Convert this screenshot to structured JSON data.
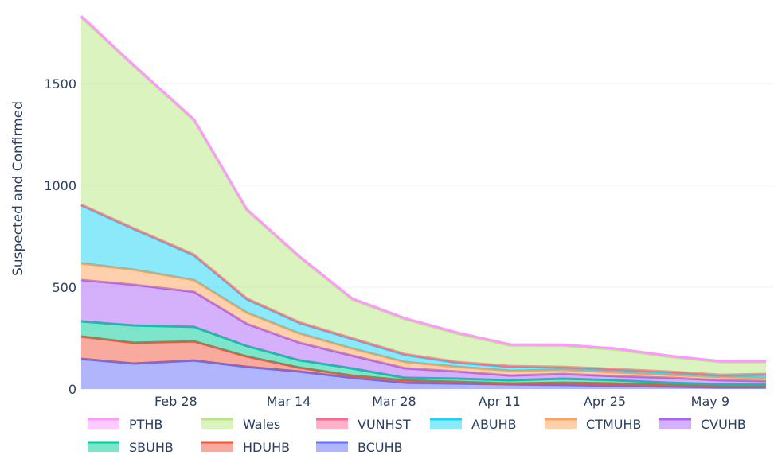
{
  "chart_data": {
    "type": "area",
    "stacked": true,
    "title": "",
    "xlabel": "",
    "ylabel": "Suspected and Confirmed",
    "ylim": [
      0,
      1836
    ],
    "yticks": [
      0,
      500,
      1000,
      1500
    ],
    "xtick_labels": [
      {
        "date": "2020-02-28",
        "label": "Feb 28"
      },
      {
        "date": "2020-03-14",
        "label": "Mar 14"
      },
      {
        "date": "2020-03-28",
        "label": "Mar 28"
      },
      {
        "date": "2020-04-11",
        "label": "Apr 11"
      },
      {
        "date": "2020-04-25",
        "label": "Apr 25"
      },
      {
        "date": "2020-05-09",
        "label": "May 9"
      }
    ],
    "grid": "horizontal",
    "legend_placement": "bottom",
    "x": [
      "2020-02-15",
      "2020-02-22",
      "2020-03-01",
      "2020-03-08",
      "2020-03-15",
      "2020-03-22",
      "2020-03-29",
      "2020-04-05",
      "2020-04-12",
      "2020-04-19",
      "2020-04-26",
      "2020-05-03",
      "2020-05-10",
      "2020-05-16"
    ],
    "series": [
      {
        "name": "BCUHB",
        "color": "#636efa",
        "values": [
          148,
          125,
          140,
          109,
          86,
          55,
          31,
          27,
          23,
          20,
          16,
          12,
          8,
          8
        ]
      },
      {
        "name": "HDUHB",
        "color": "#ef553b",
        "values": [
          110,
          102,
          94,
          51,
          19,
          11,
          12,
          8,
          4,
          11,
          11,
          8,
          8,
          8
        ]
      },
      {
        "name": "SBUHB",
        "color": "#00cc96",
        "values": [
          74,
          85,
          71,
          51,
          36,
          35,
          12,
          16,
          16,
          20,
          16,
          11,
          7,
          7
        ]
      },
      {
        "name": "CVUHB",
        "color": "#ab63fa",
        "values": [
          203,
          200,
          172,
          109,
          86,
          63,
          47,
          35,
          23,
          23,
          20,
          24,
          20,
          16
        ]
      },
      {
        "name": "CTMUHB",
        "color": "#ffa15a",
        "values": [
          82,
          74,
          58,
          55,
          46,
          35,
          31,
          23,
          24,
          20,
          19,
          15,
          16,
          16
        ]
      },
      {
        "name": "ABUHB",
        "color": "#19d3f3",
        "values": [
          285,
          199,
          121,
          66,
          51,
          47,
          35,
          20,
          19,
          11,
          12,
          12,
          7,
          15
        ]
      },
      {
        "name": "VUNHST",
        "color": "#ff6692",
        "values": [
          4,
          4,
          4,
          4,
          4,
          4,
          4,
          4,
          4,
          4,
          4,
          4,
          4,
          4
        ]
      },
      {
        "name": "Wales",
        "color": "#b6e880",
        "values": [
          920,
          796,
          659,
          433,
          319,
          190,
          171,
          139,
          101,
          104,
          96,
          73,
          62,
          58
        ]
      },
      {
        "name": "PTHB",
        "color": "#ff97ff",
        "values": [
          5,
          5,
          5,
          5,
          5,
          5,
          5,
          5,
          5,
          5,
          5,
          5,
          5,
          5
        ]
      }
    ],
    "legend_order": [
      "PTHB",
      "Wales",
      "VUNHST",
      "ABUHB",
      "CTMUHB",
      "CVUHB",
      "SBUHB",
      "HDUHB",
      "BCUHB"
    ]
  }
}
